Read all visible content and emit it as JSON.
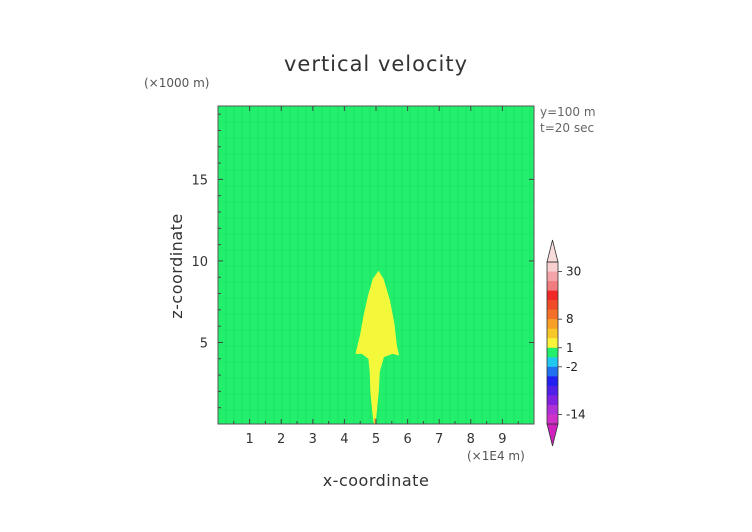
{
  "chart_data": {
    "type": "heatmap",
    "title": "vertical velocity",
    "xlabel": "x-coordinate",
    "ylabel": "z-coordinate",
    "x_unit_label": "(×1E4 m)",
    "y_unit_label": "(×1000 m)",
    "info_lines": [
      "y=100 m",
      "t=20 sec"
    ],
    "xlim": [
      0,
      10
    ],
    "ylim": [
      0,
      19.5
    ],
    "x_ticks": [
      1,
      2,
      3,
      4,
      5,
      6,
      7,
      8,
      9
    ],
    "y_ticks": [
      5,
      10,
      15
    ],
    "background_color": "#22f06c",
    "field_regions": [
      {
        "color": "#f4f83a",
        "outline": [
          [
            4.93,
            0.0
          ],
          [
            4.88,
            0.8
          ],
          [
            4.82,
            2.0
          ],
          [
            4.8,
            3.2
          ],
          [
            4.76,
            4.0
          ],
          [
            4.55,
            4.3
          ],
          [
            4.35,
            4.3
          ],
          [
            4.5,
            5.5
          ],
          [
            4.6,
            6.6
          ],
          [
            4.75,
            7.9
          ],
          [
            4.9,
            8.9
          ],
          [
            5.08,
            9.4
          ],
          [
            5.24,
            8.9
          ],
          [
            5.44,
            7.6
          ],
          [
            5.58,
            6.2
          ],
          [
            5.66,
            4.8
          ],
          [
            5.73,
            4.2
          ],
          [
            5.52,
            4.3
          ],
          [
            5.25,
            4.1
          ],
          [
            5.12,
            3.2
          ],
          [
            5.09,
            2.0
          ],
          [
            5.03,
            0.8
          ],
          [
            4.98,
            0.0
          ]
        ]
      },
      {
        "color": "#f5a03a",
        "outline": [
          [
            4.95,
            0.0
          ],
          [
            4.95,
            0.35
          ],
          [
            5.0,
            0.35
          ],
          [
            5.0,
            0.0
          ]
        ]
      }
    ],
    "colorbar": {
      "tick_labels": [
        "30",
        "8",
        "1",
        "-2",
        "-14"
      ],
      "tick_values": [
        30,
        8,
        1,
        -2,
        -14
      ],
      "levels": [
        {
          "lo": 30,
          "hi": 36,
          "color": "#f8d0d0"
        },
        {
          "lo": 24,
          "hi": 30,
          "color": "#f4a4a8"
        },
        {
          "lo": 18,
          "hi": 24,
          "color": "#f07c80"
        },
        {
          "lo": 14,
          "hi": 18,
          "color": "#f02828"
        },
        {
          "lo": 11,
          "hi": 14,
          "color": "#f04c28"
        },
        {
          "lo": 8,
          "hi": 11,
          "color": "#f47028"
        },
        {
          "lo": 5,
          "hi": 8,
          "color": "#f8a028"
        },
        {
          "lo": 3,
          "hi": 5,
          "color": "#f8c828"
        },
        {
          "lo": 1,
          "hi": 3,
          "color": "#f8f43a"
        },
        {
          "lo": -0.5,
          "hi": 1,
          "color": "#22f06c"
        },
        {
          "lo": -2,
          "hi": -0.5,
          "color": "#20c8f0"
        },
        {
          "lo": -4,
          "hi": -2,
          "color": "#2070f0"
        },
        {
          "lo": -6,
          "hi": -4,
          "color": "#2020f0"
        },
        {
          "lo": -8,
          "hi": -6,
          "color": "#5020e8"
        },
        {
          "lo": -11,
          "hi": -8,
          "color": "#8020e0"
        },
        {
          "lo": -14,
          "hi": -11,
          "color": "#b030d8"
        },
        {
          "lo": -20,
          "hi": -14,
          "color": "#d030c8"
        }
      ],
      "top_cap_color": "#f8dcdc",
      "bottom_cap_color": "#d020c0"
    }
  }
}
